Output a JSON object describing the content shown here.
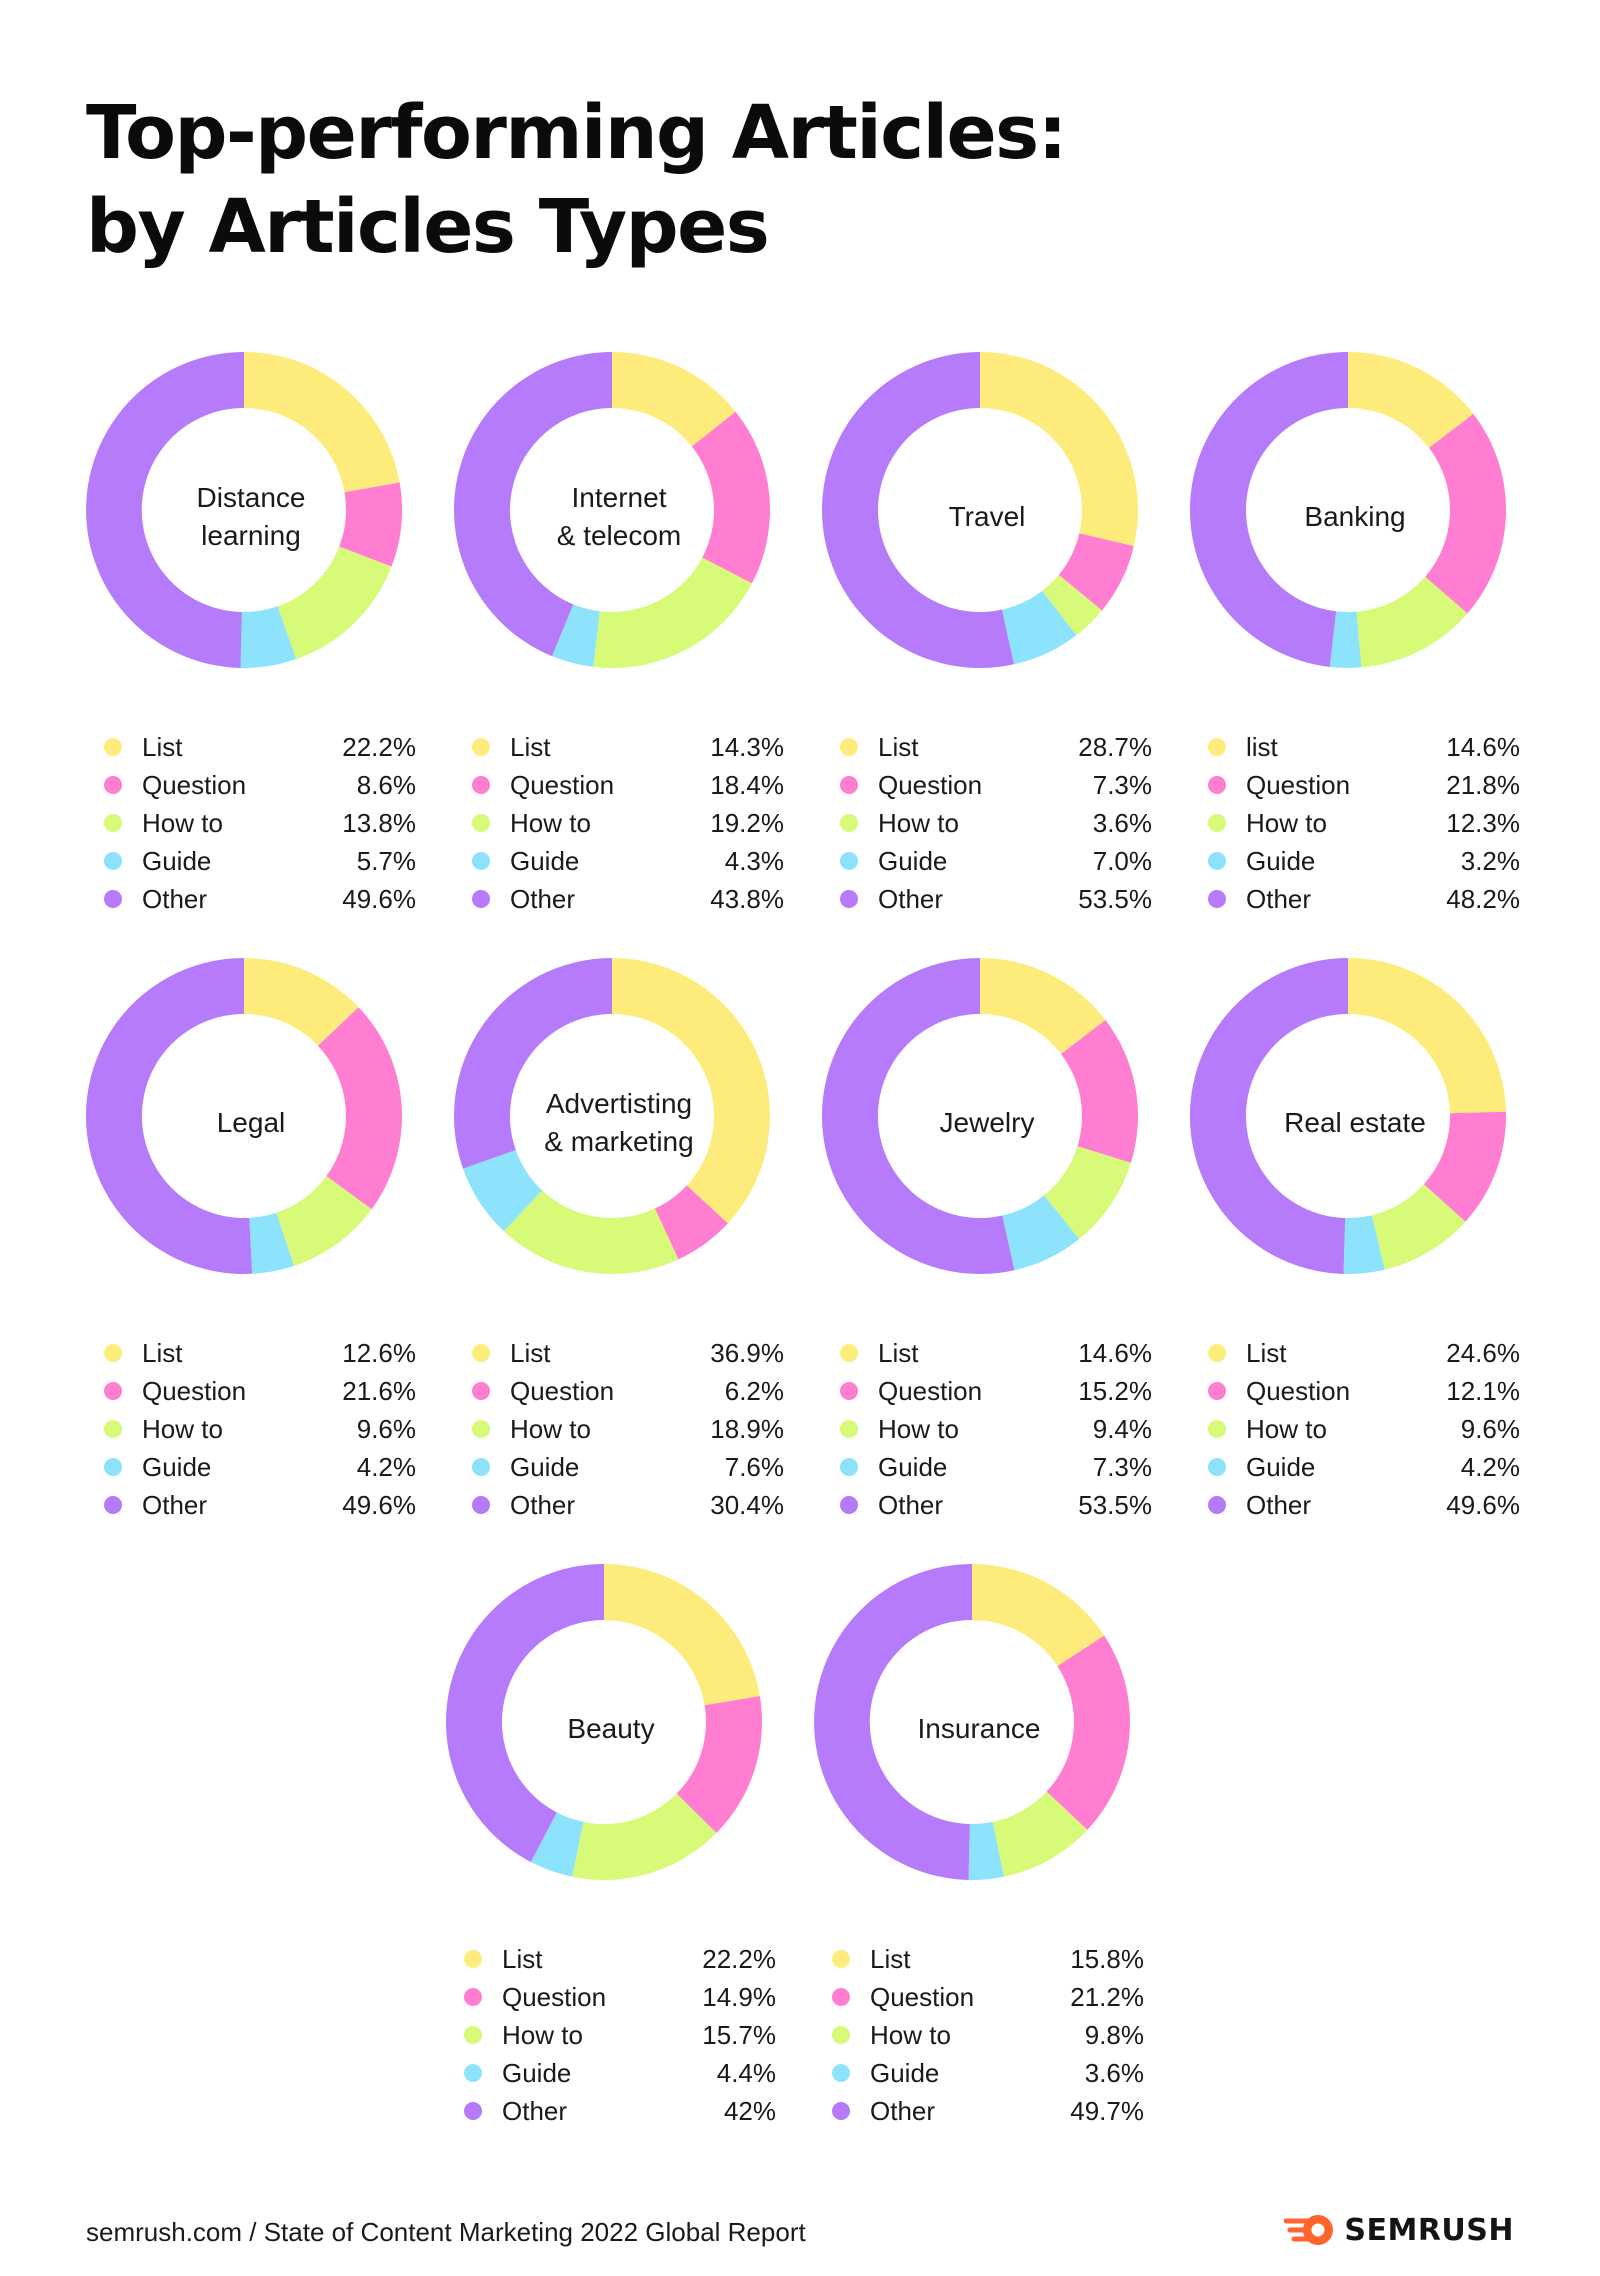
{
  "title": {
    "line1": "Top-performing Articles:",
    "line2": "by Articles Types"
  },
  "colors": {
    "list": "#FDEC7B",
    "question": "#FF7ED1",
    "how_to": "#D7FA79",
    "guide": "#8DE3FB",
    "other": "#B57BFA"
  },
  "chart_data": [
    {
      "type": "pie",
      "center_label": [
        "Distance",
        "learning"
      ],
      "categories": [
        "List",
        "Question",
        "How to",
        "Guide",
        "Other"
      ],
      "values": [
        22.2,
        8.6,
        13.8,
        5.7,
        49.6
      ],
      "value_labels": [
        "22.2%",
        "8.6%",
        "13.8%",
        "5.7%",
        "49.6%"
      ]
    },
    {
      "type": "pie",
      "center_label": [
        "Internet",
        "& telecom"
      ],
      "categories": [
        "List",
        "Question",
        "How to",
        "Guide",
        "Other"
      ],
      "values": [
        14.3,
        18.4,
        19.2,
        4.3,
        43.8
      ],
      "value_labels": [
        "14.3%",
        "18.4%",
        "19.2%",
        "4.3%",
        "43.8%"
      ]
    },
    {
      "type": "pie",
      "center_label": [
        "Travel"
      ],
      "categories": [
        "List",
        "Question",
        "How to",
        "Guide",
        "Other"
      ],
      "values": [
        28.7,
        7.3,
        3.6,
        7.0,
        53.5
      ],
      "value_labels": [
        "28.7%",
        "7.3%",
        "3.6%",
        "7.0%",
        "53.5%"
      ]
    },
    {
      "type": "pie",
      "center_label": [
        "Banking"
      ],
      "categories": [
        "list",
        "Question",
        "How to",
        "Guide",
        "Other"
      ],
      "values": [
        14.6,
        21.8,
        12.3,
        3.2,
        48.2
      ],
      "value_labels": [
        "14.6%",
        "21.8%",
        "12.3%",
        "3.2%",
        "48.2%"
      ]
    },
    {
      "type": "pie",
      "center_label": [
        "Legal"
      ],
      "categories": [
        "List",
        "Question",
        "How to",
        "Guide",
        "Other"
      ],
      "values": [
        12.6,
        21.6,
        9.6,
        4.2,
        49.6
      ],
      "value_labels": [
        "12.6%",
        "21.6%",
        "9.6%",
        "4.2%",
        "49.6%"
      ]
    },
    {
      "type": "pie",
      "center_label": [
        "Advertisting",
        "& marketing"
      ],
      "categories": [
        "List",
        "Question",
        "How to",
        "Guide",
        "Other"
      ],
      "values": [
        36.9,
        6.2,
        18.9,
        7.6,
        30.4
      ],
      "value_labels": [
        "36.9%",
        "6.2%",
        "18.9%",
        "7.6%",
        "30.4%"
      ]
    },
    {
      "type": "pie",
      "center_label": [
        "Jewelry"
      ],
      "categories": [
        "List",
        "Question",
        "How to",
        "Guide",
        "Other"
      ],
      "values": [
        14.6,
        15.2,
        9.4,
        7.3,
        53.5
      ],
      "value_labels": [
        "14.6%",
        "15.2%",
        "9.4%",
        "7.3%",
        "53.5%"
      ]
    },
    {
      "type": "pie",
      "center_label": [
        "Real estate"
      ],
      "categories": [
        "List",
        "Question",
        "How to",
        "Guide",
        "Other"
      ],
      "values": [
        24.6,
        12.1,
        9.6,
        4.2,
        49.6
      ],
      "value_labels": [
        "24.6%",
        "12.1%",
        "9.6%",
        "4.2%",
        "49.6%"
      ]
    },
    {
      "type": "pie",
      "center_label": [
        "Beauty"
      ],
      "categories": [
        "List",
        "Question",
        "How to",
        "Guide",
        "Other"
      ],
      "values": [
        22.2,
        14.9,
        15.7,
        4.4,
        42
      ],
      "value_labels": [
        "22.2%",
        "14.9%",
        "15.7%",
        "4.4%",
        "42%"
      ]
    },
    {
      "type": "pie",
      "center_label": [
        "Insurance"
      ],
      "categories": [
        "List",
        "Question",
        "How to",
        "Guide",
        "Other"
      ],
      "values": [
        15.8,
        21.2,
        9.8,
        3.6,
        49.7
      ],
      "value_labels": [
        "15.8%",
        "21.2%",
        "9.8%",
        "3.6%",
        "49.7%"
      ]
    }
  ],
  "footer": {
    "source": "semrush.com / State of Content Marketing 2022 Global Report",
    "brand": "SEMRUSH",
    "brand_icon": "semrush-fireball-icon",
    "brand_color": "#FF642D"
  }
}
